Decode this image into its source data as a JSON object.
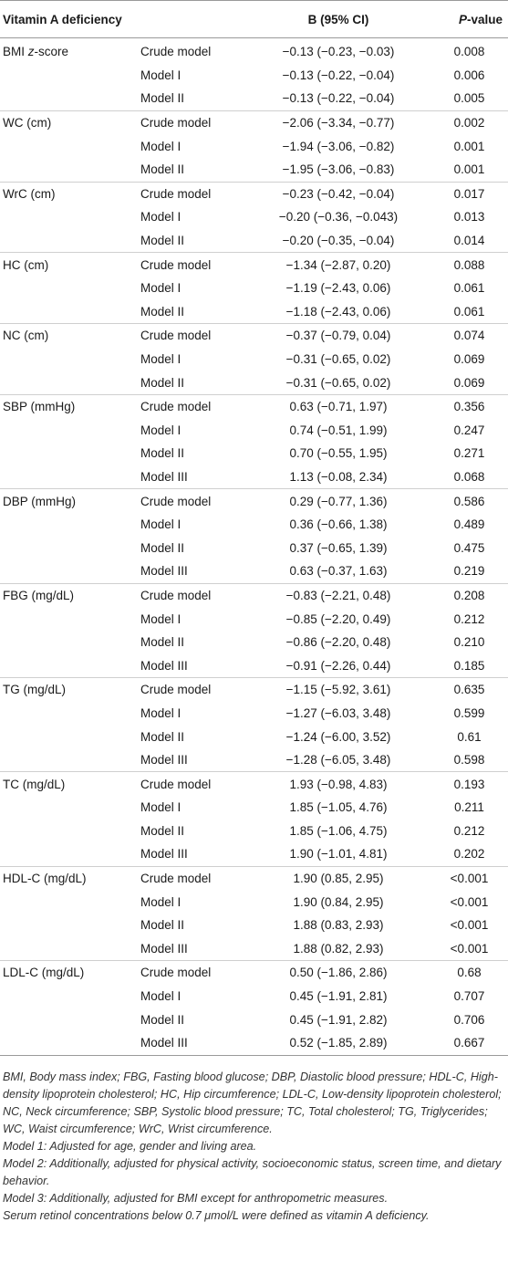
{
  "header": {
    "col1": "Vitamin A deficiency",
    "col3": "B (95% CI)",
    "col4_italic": "P",
    "col4_rest": "-value"
  },
  "rows": [
    {
      "variable": "BMI z-score",
      "model": "Crude model",
      "b": "−0.13 (−0.23, −0.03)",
      "p": "0.008"
    },
    {
      "variable": "",
      "model": "Model I",
      "b": "−0.13 (−0.22, −0.04)",
      "p": "0.006"
    },
    {
      "variable": "",
      "model": "Model II",
      "b": "−0.13 (−0.22, −0.04)",
      "p": "0.005"
    },
    {
      "variable": "WC (cm)",
      "model": "Crude model",
      "b": "−2.06 (−3.34, −0.77)",
      "p": "0.002"
    },
    {
      "variable": "",
      "model": "Model I",
      "b": "−1.94 (−3.06, −0.82)",
      "p": "0.001"
    },
    {
      "variable": "",
      "model": "Model II",
      "b": "−1.95 (−3.06, −0.83)",
      "p": "0.001"
    },
    {
      "variable": "WrC (cm)",
      "model": "Crude model",
      "b": "−0.23 (−0.42, −0.04)",
      "p": "0.017"
    },
    {
      "variable": "",
      "model": "Model I",
      "b": "−0.20 (−0.36, −0.043)",
      "p": "0.013"
    },
    {
      "variable": "",
      "model": "Model II",
      "b": "−0.20 (−0.35, −0.04)",
      "p": "0.014"
    },
    {
      "variable": "HC (cm)",
      "model": "Crude model",
      "b": "−1.34 (−2.87, 0.20)",
      "p": "0.088"
    },
    {
      "variable": "",
      "model": "Model I",
      "b": "−1.19 (−2.43, 0.06)",
      "p": "0.061"
    },
    {
      "variable": "",
      "model": "Model II",
      "b": "−1.18 (−2.43, 0.06)",
      "p": "0.061"
    },
    {
      "variable": "NC (cm)",
      "model": "Crude model",
      "b": "−0.37 (−0.79, 0.04)",
      "p": "0.074"
    },
    {
      "variable": "",
      "model": "Model I",
      "b": "−0.31 (−0.65, 0.02)",
      "p": "0.069"
    },
    {
      "variable": "",
      "model": "Model II",
      "b": "−0.31 (−0.65, 0.02)",
      "p": "0.069"
    },
    {
      "variable": "SBP (mmHg)",
      "model": "Crude model",
      "b": "0.63 (−0.71, 1.97)",
      "p": "0.356"
    },
    {
      "variable": "",
      "model": "Model I",
      "b": "0.74 (−0.51, 1.99)",
      "p": "0.247"
    },
    {
      "variable": "",
      "model": "Model II",
      "b": "0.70 (−0.55, 1.95)",
      "p": "0.271"
    },
    {
      "variable": "",
      "model": "Model III",
      "b": "1.13 (−0.08, 2.34)",
      "p": "0.068"
    },
    {
      "variable": "DBP (mmHg)",
      "model": "Crude model",
      "b": "0.29 (−0.77, 1.36)",
      "p": "0.586"
    },
    {
      "variable": "",
      "model": "Model I",
      "b": "0.36 (−0.66, 1.38)",
      "p": "0.489"
    },
    {
      "variable": "",
      "model": "Model II",
      "b": "0.37 (−0.65, 1.39)",
      "p": "0.475"
    },
    {
      "variable": "",
      "model": "Model III",
      "b": "0.63 (−0.37, 1.63)",
      "p": "0.219"
    },
    {
      "variable": "FBG (mg/dL)",
      "model": "Crude model",
      "b": "−0.83 (−2.21, 0.48)",
      "p": "0.208"
    },
    {
      "variable": "",
      "model": "Model I",
      "b": "−0.85 (−2.20, 0.49)",
      "p": "0.212"
    },
    {
      "variable": "",
      "model": "Model II",
      "b": "−0.86 (−2.20, 0.48)",
      "p": "0.210"
    },
    {
      "variable": "",
      "model": "Model III",
      "b": "−0.91 (−2.26, 0.44)",
      "p": "0.185"
    },
    {
      "variable": "TG (mg/dL)",
      "model": "Crude model",
      "b": "−1.15 (−5.92, 3.61)",
      "p": "0.635"
    },
    {
      "variable": "",
      "model": "Model I",
      "b": "−1.27 (−6.03, 3.48)",
      "p": "0.599"
    },
    {
      "variable": "",
      "model": "Model II",
      "b": "−1.24 (−6.00, 3.52)",
      "p": "0.61"
    },
    {
      "variable": "",
      "model": "Model III",
      "b": "−1.28 (−6.05, 3.48)",
      "p": "0.598"
    },
    {
      "variable": "TC (mg/dL)",
      "model": "Crude model",
      "b": "1.93 (−0.98, 4.83)",
      "p": "0.193"
    },
    {
      "variable": "",
      "model": "Model I",
      "b": "1.85 (−1.05, 4.76)",
      "p": "0.211"
    },
    {
      "variable": "",
      "model": "Model II",
      "b": "1.85 (−1.06, 4.75)",
      "p": "0.212"
    },
    {
      "variable": "",
      "model": "Model III",
      "b": "1.90 (−1.01, 4.81)",
      "p": "0.202"
    },
    {
      "variable": "HDL-C (mg/dL)",
      "model": "Crude model",
      "b": "1.90 (0.85, 2.95)",
      "p": "<0.001"
    },
    {
      "variable": "",
      "model": "Model I",
      "b": "1.90 (0.84, 2.95)",
      "p": "<0.001"
    },
    {
      "variable": "",
      "model": "Model II",
      "b": "1.88 (0.83, 2.93)",
      "p": "<0.001"
    },
    {
      "variable": "",
      "model": "Model III",
      "b": "1.88 (0.82, 2.93)",
      "p": "<0.001"
    },
    {
      "variable": "LDL-C (mg/dL)",
      "model": "Crude model",
      "b": "0.50 (−1.86, 2.86)",
      "p": "0.68"
    },
    {
      "variable": "",
      "model": "Model I",
      "b": "0.45 (−1.91, 2.81)",
      "p": "0.707"
    },
    {
      "variable": "",
      "model": "Model II",
      "b": "0.45 (−1.91, 2.82)",
      "p": "0.706"
    },
    {
      "variable": "",
      "model": "Model III",
      "b": "0.52 (−1.85, 2.89)",
      "p": "0.667"
    }
  ],
  "footnotes": [
    "BMI, Body mass index; FBG, Fasting blood glucose; DBP, Diastolic blood pressure; HDL-C, High-density lipoprotein cholesterol; HC, Hip circumference; LDL-C, Low-density lipoprotein cholesterol; NC, Neck circumference; SBP, Systolic blood pressure; TC, Total cholesterol; TG, Triglycerides; WC, Waist circumference; WrC, Wrist circumference.",
    "Model 1: Adjusted for age, gender and living area.",
    "Model 2: Additionally, adjusted for physical activity, socioeconomic status, screen time, and dietary behavior.",
    "Model 3: Additionally, adjusted for BMI except for anthropometric measures.",
    "Serum retinol concentrations below 0.7 μmol/L were defined as vitamin A deficiency."
  ]
}
